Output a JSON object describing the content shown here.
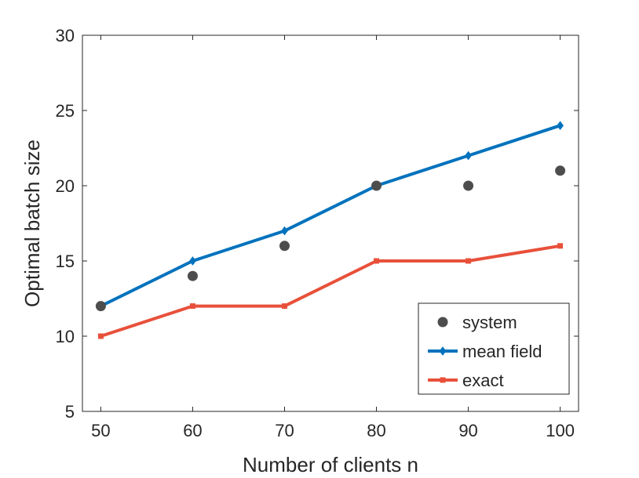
{
  "chart_data": {
    "type": "line",
    "title": "",
    "xlabel": "Number of clients n",
    "ylabel": "Optimal batch size",
    "xlim": [
      48,
      102
    ],
    "ylim": [
      5,
      30
    ],
    "x_ticks": [
      50,
      60,
      70,
      80,
      90,
      100
    ],
    "y_ticks": [
      5,
      10,
      15,
      20,
      25,
      30
    ],
    "x_tick_labels": [
      "50",
      "60",
      "70",
      "80",
      "90",
      "100"
    ],
    "y_tick_labels": [
      "5",
      "10",
      "15",
      "20",
      "25",
      "30"
    ],
    "grid": false,
    "legend_position": "bottom-right",
    "series": [
      {
        "name": "system",
        "style": "markers",
        "marker": "circle",
        "color": "#4d4d4d",
        "x": [
          50,
          60,
          70,
          80,
          90,
          100
        ],
        "values": [
          12,
          14,
          16,
          20,
          20,
          21
        ]
      },
      {
        "name": "mean field",
        "style": "line-markers",
        "marker": "diamond",
        "color": "#0072bd",
        "x": [
          50,
          60,
          70,
          80,
          90,
          100
        ],
        "values": [
          12,
          15,
          17,
          20,
          22,
          24
        ]
      },
      {
        "name": "exact",
        "style": "line-markers",
        "marker": "square",
        "color": "#e8503a",
        "x": [
          50,
          60,
          70,
          80,
          90,
          100
        ],
        "values": [
          10,
          12,
          12,
          15,
          15,
          16
        ]
      }
    ]
  }
}
